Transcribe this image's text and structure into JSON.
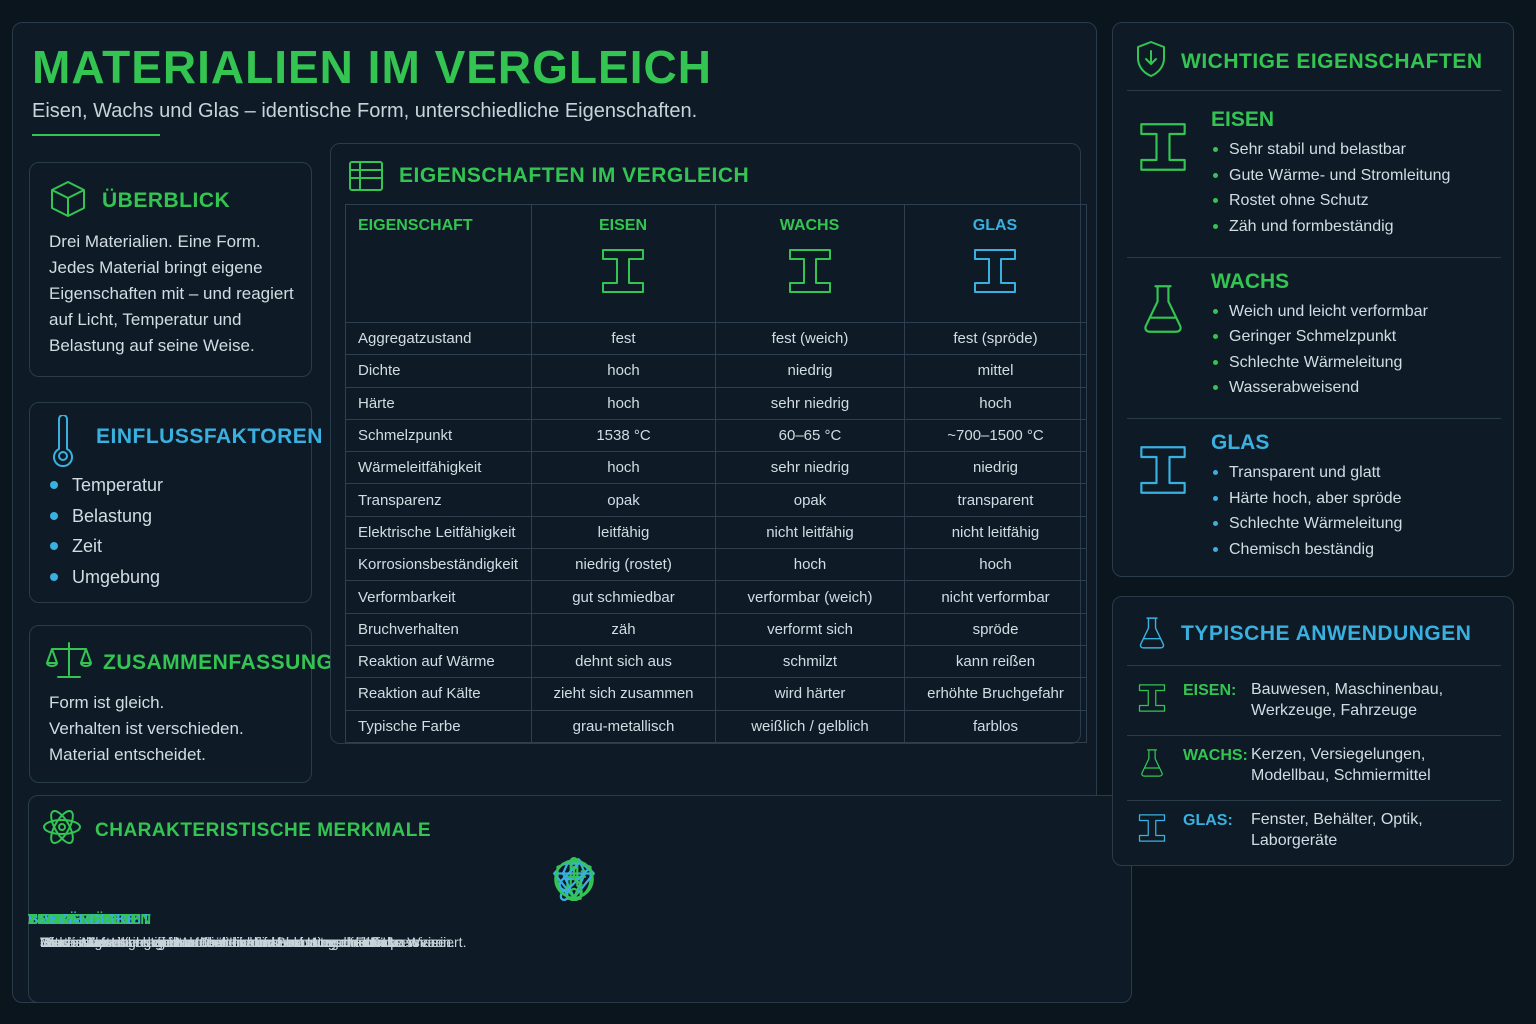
{
  "header": {
    "title": "MATERIALIEN IM VERGLEICH",
    "subtitle": "Eisen, Wachs und Glas – identische Form, unterschiedliche Eigenschaften."
  },
  "overview": {
    "title": "ÜBERBLICK",
    "text": "Drei Materialien. Eine Form. Jedes Material bringt eigene Eigenschaften mit – und reagiert auf Licht, Temperatur und Belastung auf seine Weise."
  },
  "factors": {
    "title": "EINFLUSSFAKTOREN",
    "items": [
      "Temperatur",
      "Belastung",
      "Zeit",
      "Umgebung"
    ]
  },
  "summary": {
    "title": "ZUSAMMENFASSUNG",
    "lines": [
      "Form ist gleich.",
      "Verhalten ist verschieden.",
      "Material entscheidet."
    ]
  },
  "table": {
    "title": "EIGENSCHAFTEN IM VERGLEICH",
    "header": [
      "EIGENSCHAFT",
      "EISEN",
      "WACHS",
      "GLAS"
    ],
    "rows": [
      [
        "Aggregatzustand",
        "fest",
        "fest (weich)",
        "fest (spröde)"
      ],
      [
        "Dichte",
        "hoch",
        "niedrig",
        "mittel"
      ],
      [
        "Härte",
        "hoch",
        "sehr niedrig",
        "hoch"
      ],
      [
        "Schmelzpunkt",
        "1538 °C",
        "60–65 °C",
        "~700–1500 °C"
      ],
      [
        "Wärmeleitfähigkeit",
        "hoch",
        "sehr niedrig",
        "niedrig"
      ],
      [
        "Transparenz",
        "opak",
        "opak",
        "transparent"
      ],
      [
        "Elektrische Leitfähigkeit",
        "leitfähig",
        "nicht leitfähig",
        "nicht leitfähig"
      ],
      [
        "Korrosionsbeständigkeit",
        "niedrig (rostet)",
        "hoch",
        "hoch"
      ],
      [
        "Verformbarkeit",
        "gut schmiedbar",
        "verformbar (weich)",
        "nicht verformbar"
      ],
      [
        "Bruchverhalten",
        "zäh",
        "verformt sich",
        "spröde"
      ],
      [
        "Reaktion auf Wärme",
        "dehnt sich aus",
        "schmilzt",
        "kann reißen"
      ],
      [
        "Reaktion auf Kälte",
        "zieht sich zusammen",
        "wird härter",
        "erhöhte Bruchgefahr"
      ],
      [
        "Typische Farbe",
        "grau-metallisch",
        "weißlich / gelblich",
        "farblos"
      ]
    ]
  },
  "features": {
    "title": "CHARAKTERISTISCHE MERKMALE",
    "items": [
      {
        "title": "STABILITÄT",
        "text": "Eisen ist extrem stabil und hält hohen Belastungen stand."
      },
      {
        "title": "FORMBARKEIT",
        "text": "Wachs lässt sich leicht verformen und nimmt neue Formen an."
      },
      {
        "title": "TRANSPARENZ",
        "text": "Glas ist durchsichtig und lässt Licht nahezu ungehindert passieren."
      },
      {
        "title": "TEMPERATUR",
        "text": "Jedes Material reagiert unterschiedlich auf Hitze und Kälte."
      },
      {
        "title": "BESTÄNDIGKEIT",
        "text": "Beständigkeit gegenüber Chemikalien und Umwelteinflüssen variiert."
      },
      {
        "title": "ZEITVERHALTEN",
        "text": "Mit der Zeit altern die Materialien auf sehr unterschiedliche Weise."
      }
    ]
  },
  "properties": {
    "title": "WICHTIGE EIGENSCHAFTEN",
    "groups": [
      {
        "name": "EISEN",
        "items": [
          "Sehr stabil und belastbar",
          "Gute Wärme- und Stromleitung",
          "Rostet ohne Schutz",
          "Zäh und formbeständig"
        ]
      },
      {
        "name": "WACHS",
        "items": [
          "Weich und leicht verformbar",
          "Geringer Schmelzpunkt",
          "Schlechte Wärmeleitung",
          "Wasserabweisend"
        ]
      },
      {
        "name": "GLAS",
        "items": [
          "Transparent und glatt",
          "Härte hoch, aber spröde",
          "Schlechte Wärmeleitung",
          "Chemisch beständig"
        ]
      }
    ]
  },
  "applications": {
    "title": "TYPISCHE ANWENDUNGEN",
    "items": [
      {
        "name": "EISEN:",
        "text": "Bauwesen, Maschinenbau, Werkzeuge, Fahrzeuge"
      },
      {
        "name": "WACHS:",
        "text": "Kerzen, Versiegelungen, Modellbau, Schmiermittel"
      },
      {
        "name": "GLAS:",
        "text": "Fenster, Behälter, Optik, Laborgeräte"
      }
    ]
  }
}
